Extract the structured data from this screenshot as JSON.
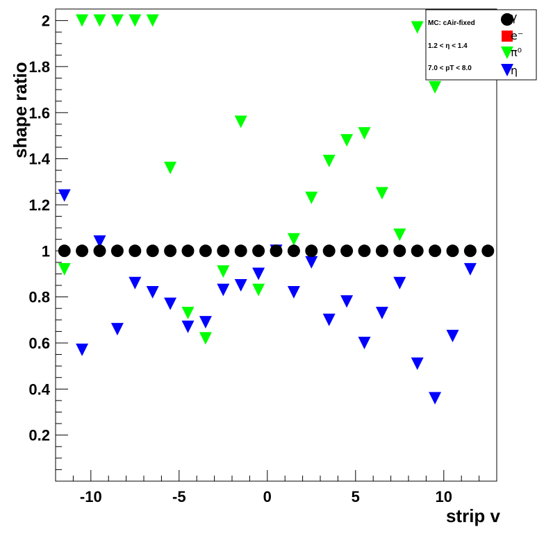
{
  "chart_data": {
    "type": "scatter",
    "xlabel": "strip v",
    "ylabel": "shape ratio",
    "xlim": [
      -12,
      13
    ],
    "ylim": [
      0,
      2.05
    ],
    "x_ticks": [
      "-10",
      "-5",
      "0",
      "5",
      "10"
    ],
    "x_tick_values": [
      -10,
      -5,
      0,
      5,
      10
    ],
    "y_ticks": [
      "0.2",
      "0.4",
      "0.6",
      "0.8",
      "1",
      "1.2",
      "1.4",
      "1.6",
      "1.8",
      "2"
    ],
    "y_tick_values": [
      0.2,
      0.4,
      0.6,
      0.8,
      1.0,
      1.2,
      1.4,
      1.6,
      1.8,
      2.0
    ],
    "legend": {
      "placement": "top-right",
      "info": [
        "MC: cAir-fixed",
        "1.2 < η < 1.4",
        "7.0 < pT < 8.0"
      ],
      "entries": [
        "γ",
        "e⁻",
        "π⁰",
        "η"
      ]
    },
    "series": [
      {
        "name": "γ",
        "marker": "circle",
        "color": "#000000",
        "x": [
          -11.5,
          -10.5,
          -9.5,
          -8.5,
          -7.5,
          -6.5,
          -5.5,
          -4.5,
          -3.5,
          -2.5,
          -1.5,
          -0.5,
          0.5,
          1.5,
          2.5,
          3.5,
          4.5,
          5.5,
          6.5,
          7.5,
          8.5,
          9.5,
          10.5,
          11.5,
          12.5
        ],
        "y": [
          1,
          1,
          1,
          1,
          1,
          1,
          1,
          1,
          1,
          1,
          1,
          1,
          1,
          1,
          1,
          1,
          1,
          1,
          1,
          1,
          1,
          1,
          1,
          1,
          1
        ]
      },
      {
        "name": "e⁻",
        "marker": "square",
        "color": "#ff0000",
        "x": [],
        "y": []
      },
      {
        "name": "π⁰",
        "marker": "triangle-down",
        "color": "#00ff00",
        "x": [
          -11.5,
          -10.5,
          -9.5,
          -8.5,
          -7.5,
          -6.5,
          -5.5,
          -4.5,
          -3.5,
          -2.5,
          -1.5,
          -0.5,
          1.5,
          2.5,
          3.5,
          4.5,
          5.5,
          6.5,
          7.5,
          8.5,
          9.5
        ],
        "y": [
          0.92,
          2.0,
          2.0,
          2.0,
          2.0,
          2.0,
          1.36,
          0.73,
          0.62,
          0.91,
          1.56,
          0.83,
          1.05,
          1.23,
          1.39,
          1.48,
          1.51,
          1.25,
          1.07,
          1.97,
          1.71
        ]
      },
      {
        "name": "η",
        "marker": "triangle-down",
        "color": "#0000ff",
        "x": [
          -11.5,
          -10.5,
          -9.5,
          -8.5,
          -7.5,
          -6.5,
          -5.5,
          -4.5,
          -3.5,
          -2.5,
          -1.5,
          -0.5,
          0.5,
          1.5,
          2.5,
          3.5,
          4.5,
          5.5,
          6.5,
          7.5,
          8.5,
          9.5,
          10.5,
          11.5
        ],
        "y": [
          1.24,
          0.57,
          1.04,
          0.66,
          0.86,
          0.82,
          0.77,
          0.67,
          0.69,
          0.83,
          0.85,
          0.9,
          1.0,
          0.82,
          0.95,
          0.7,
          0.78,
          0.6,
          0.73,
          0.86,
          0.51,
          0.36,
          0.63,
          0.92
        ]
      }
    ]
  }
}
